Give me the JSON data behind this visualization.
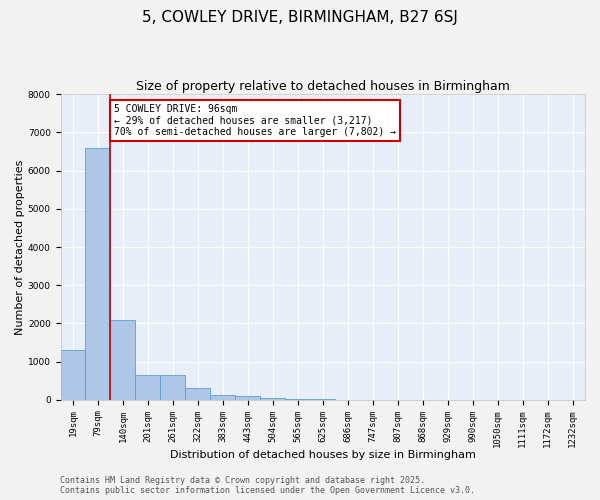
{
  "title_line1": "5, COWLEY DRIVE, BIRMINGHAM, B27 6SJ",
  "title_line2": "Size of property relative to detached houses in Birmingham",
  "xlabel": "Distribution of detached houses by size in Birmingham",
  "ylabel": "Number of detached properties",
  "categories": [
    "19sqm",
    "79sqm",
    "140sqm",
    "201sqm",
    "261sqm",
    "322sqm",
    "383sqm",
    "443sqm",
    "504sqm",
    "565sqm",
    "625sqm",
    "686sqm",
    "747sqm",
    "807sqm",
    "868sqm",
    "929sqm",
    "990sqm",
    "1050sqm",
    "1111sqm",
    "1172sqm",
    "1232sqm"
  ],
  "values": [
    1300,
    6600,
    2100,
    650,
    650,
    300,
    130,
    90,
    50,
    30,
    15,
    5,
    5,
    5,
    5,
    5,
    5,
    5,
    5,
    5,
    5
  ],
  "bar_color": "#aec6e8",
  "bar_edge_color": "#5a9fd4",
  "vline_color": "#cc0000",
  "annotation_text": "5 COWLEY DRIVE: 96sqm\n← 29% of detached houses are smaller (3,217)\n70% of semi-detached houses are larger (7,802) →",
  "annotation_box_color": "#ffffff",
  "annotation_box_edge_color": "#cc0000",
  "ylim": [
    0,
    8000
  ],
  "yticks": [
    0,
    1000,
    2000,
    3000,
    4000,
    5000,
    6000,
    7000,
    8000
  ],
  "background_color": "#e8eef8",
  "fig_background_color": "#f2f2f2",
  "grid_color": "#ffffff",
  "footer_line1": "Contains HM Land Registry data © Crown copyright and database right 2025.",
  "footer_line2": "Contains public sector information licensed under the Open Government Licence v3.0.",
  "title_fontsize": 11,
  "subtitle_fontsize": 9,
  "axis_label_fontsize": 8,
  "tick_fontsize": 6.5,
  "annotation_fontsize": 7,
  "footer_fontsize": 6
}
